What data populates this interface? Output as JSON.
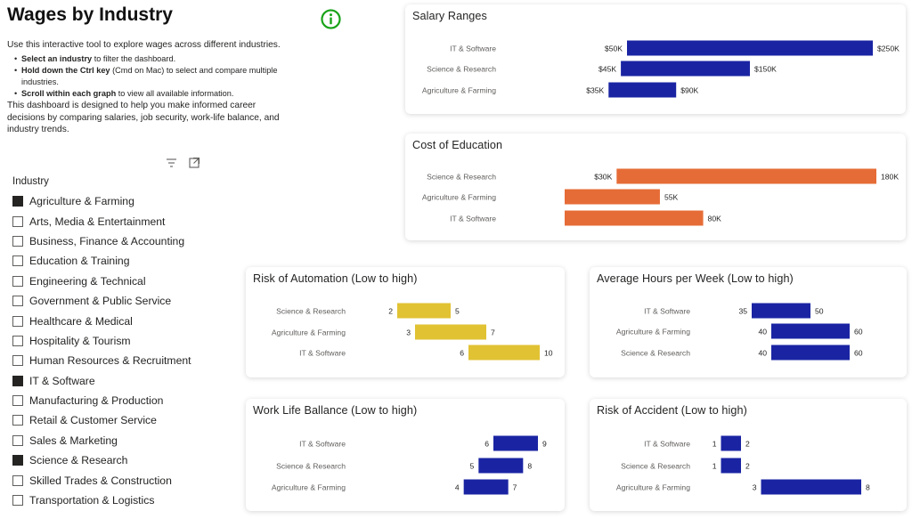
{
  "page": {
    "title": "Wages by Industry",
    "intro": "Use this interactive tool to explore wages across different industries.",
    "bullets": [
      {
        "bold": "Select an industry",
        "text": " to filter the dashboard."
      },
      {
        "bold": "Hold down the Ctrl key",
        "text": " (Cmd on Mac) to select and compare multiple industries."
      },
      {
        "bold": "Scroll within each graph",
        "text": " to view all available information."
      }
    ],
    "intro2": "This dashboard is designed to help you make informed career decisions by comparing salaries, job security, work-life balance, and industry trends.",
    "info_icon": "info-circle-icon",
    "accent_info": "#1aa31a"
  },
  "slicer": {
    "header": "Industry",
    "items": [
      {
        "label": "Agriculture & Farming",
        "checked": true
      },
      {
        "label": "Arts, Media & Entertainment",
        "checked": false
      },
      {
        "label": "Business, Finance & Accounting",
        "checked": false
      },
      {
        "label": "Education & Training",
        "checked": false
      },
      {
        "label": "Engineering & Technical",
        "checked": false
      },
      {
        "label": "Government & Public Service",
        "checked": false
      },
      {
        "label": "Healthcare & Medical",
        "checked": false
      },
      {
        "label": "Hospitality & Tourism",
        "checked": false
      },
      {
        "label": "Human Resources & Recruitment",
        "checked": false
      },
      {
        "label": "IT & Software",
        "checked": true
      },
      {
        "label": "Manufacturing & Production",
        "checked": false
      },
      {
        "label": "Retail & Customer Service",
        "checked": false
      },
      {
        "label": "Sales & Marketing",
        "checked": false
      },
      {
        "label": "Science & Research",
        "checked": true
      },
      {
        "label": "Skilled Trades & Construction",
        "checked": false
      },
      {
        "label": "Transportation & Logistics",
        "checked": false
      }
    ],
    "tools": [
      "filter-icon",
      "focus-mode-icon"
    ]
  },
  "chart_data": [
    {
      "id": "salary",
      "type": "bar",
      "orientation": "horizontal-range",
      "title": "Salary Ranges",
      "color": "#1a24a3",
      "xlim": [
        0,
        250000
      ],
      "categories": [
        "IT & Software",
        "Science & Research",
        "Agriculture & Farming"
      ],
      "low": [
        50000,
        45000,
        35000
      ],
      "high": [
        250000,
        150000,
        90000
      ],
      "low_labels": [
        "$50K",
        "$45K",
        "$35K"
      ],
      "high_labels": [
        "$250K",
        "$150K",
        "$90K"
      ]
    },
    {
      "id": "education",
      "type": "bar",
      "orientation": "horizontal-range",
      "title": "Cost of Education",
      "color": "#e66c37",
      "xlim": [
        0,
        180000
      ],
      "categories": [
        "Science & Research",
        "Agriculture & Farming",
        "IT & Software"
      ],
      "low": [
        30000,
        0,
        0
      ],
      "high": [
        180000,
        55000,
        80000
      ],
      "low_labels": [
        "$30K",
        "",
        ""
      ],
      "high_labels": [
        "180K",
        "55K",
        "80K"
      ]
    },
    {
      "id": "automation",
      "type": "bar",
      "orientation": "horizontal-range",
      "title": "Risk of Automation (Low to high)",
      "color": "#e1c233",
      "xlim": [
        0,
        10
      ],
      "categories": [
        "Science & Research",
        "Agriculture & Farming",
        "IT & Software"
      ],
      "low": [
        2,
        3,
        6
      ],
      "high": [
        5,
        7,
        10
      ],
      "low_labels": [
        "2",
        "3",
        "6"
      ],
      "high_labels": [
        "5",
        "7",
        "10"
      ]
    },
    {
      "id": "hours",
      "type": "bar",
      "orientation": "horizontal-range",
      "title": "Average Hours per Week (Low to high)",
      "color": "#1a24a3",
      "xlim": [
        30,
        60
      ],
      "categories": [
        "IT & Software",
        "Agriculture & Farming",
        "Science & Research"
      ],
      "low": [
        35,
        40,
        40
      ],
      "high": [
        50,
        60,
        60
      ],
      "low_labels": [
        "35",
        "40",
        "40"
      ],
      "high_labels": [
        "50",
        "60",
        "60"
      ]
    },
    {
      "id": "worklife",
      "type": "bar",
      "orientation": "horizontal-range",
      "title": "Work Life Ballance (Low to high)",
      "color": "#1a24a3",
      "xlim": [
        0,
        9
      ],
      "categories": [
        "IT & Software",
        "Science & Research",
        "Agriculture & Farming"
      ],
      "low": [
        6,
        5,
        4
      ],
      "high": [
        9,
        8,
        7
      ],
      "low_labels": [
        "6",
        "5",
        "4"
      ],
      "high_labels": [
        "9",
        "8",
        "7"
      ]
    },
    {
      "id": "accident",
      "type": "bar",
      "orientation": "horizontal-range",
      "title": "Risk of Accident (Low to high)",
      "color": "#1a24a3",
      "xlim": [
        0,
        8
      ],
      "categories": [
        "IT & Software",
        "Science & Research",
        "Agriculture & Farming"
      ],
      "low": [
        1,
        1,
        3
      ],
      "high": [
        2,
        2,
        8
      ],
      "low_labels": [
        "1",
        "1",
        "3"
      ],
      "high_labels": [
        "2",
        "2",
        "8"
      ]
    }
  ]
}
